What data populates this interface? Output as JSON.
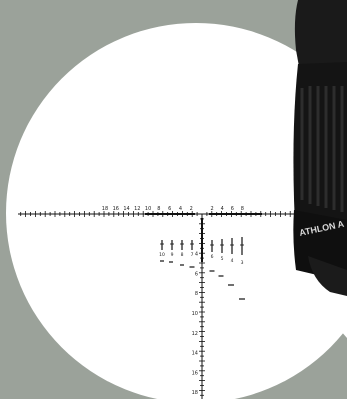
{
  "reticle": {
    "h_labels_left": [
      "18",
      "16",
      "14",
      "12",
      "10",
      "8",
      "6",
      "4",
      "2"
    ],
    "h_labels_right": [
      "2",
      "4",
      "6",
      "8"
    ],
    "v_labels": [
      "4",
      "6",
      "8",
      "10",
      "12",
      "14",
      "16",
      "18"
    ],
    "wind_labels": [
      "10",
      "9",
      "8",
      "7",
      "6",
      "5",
      "4",
      "3"
    ]
  },
  "scope_body": {
    "brand_text": "ATHLON A"
  },
  "colors": {
    "background": "#9ba29a",
    "lens": "#ffffff",
    "reticle": "#111111",
    "scope": "#121212"
  }
}
